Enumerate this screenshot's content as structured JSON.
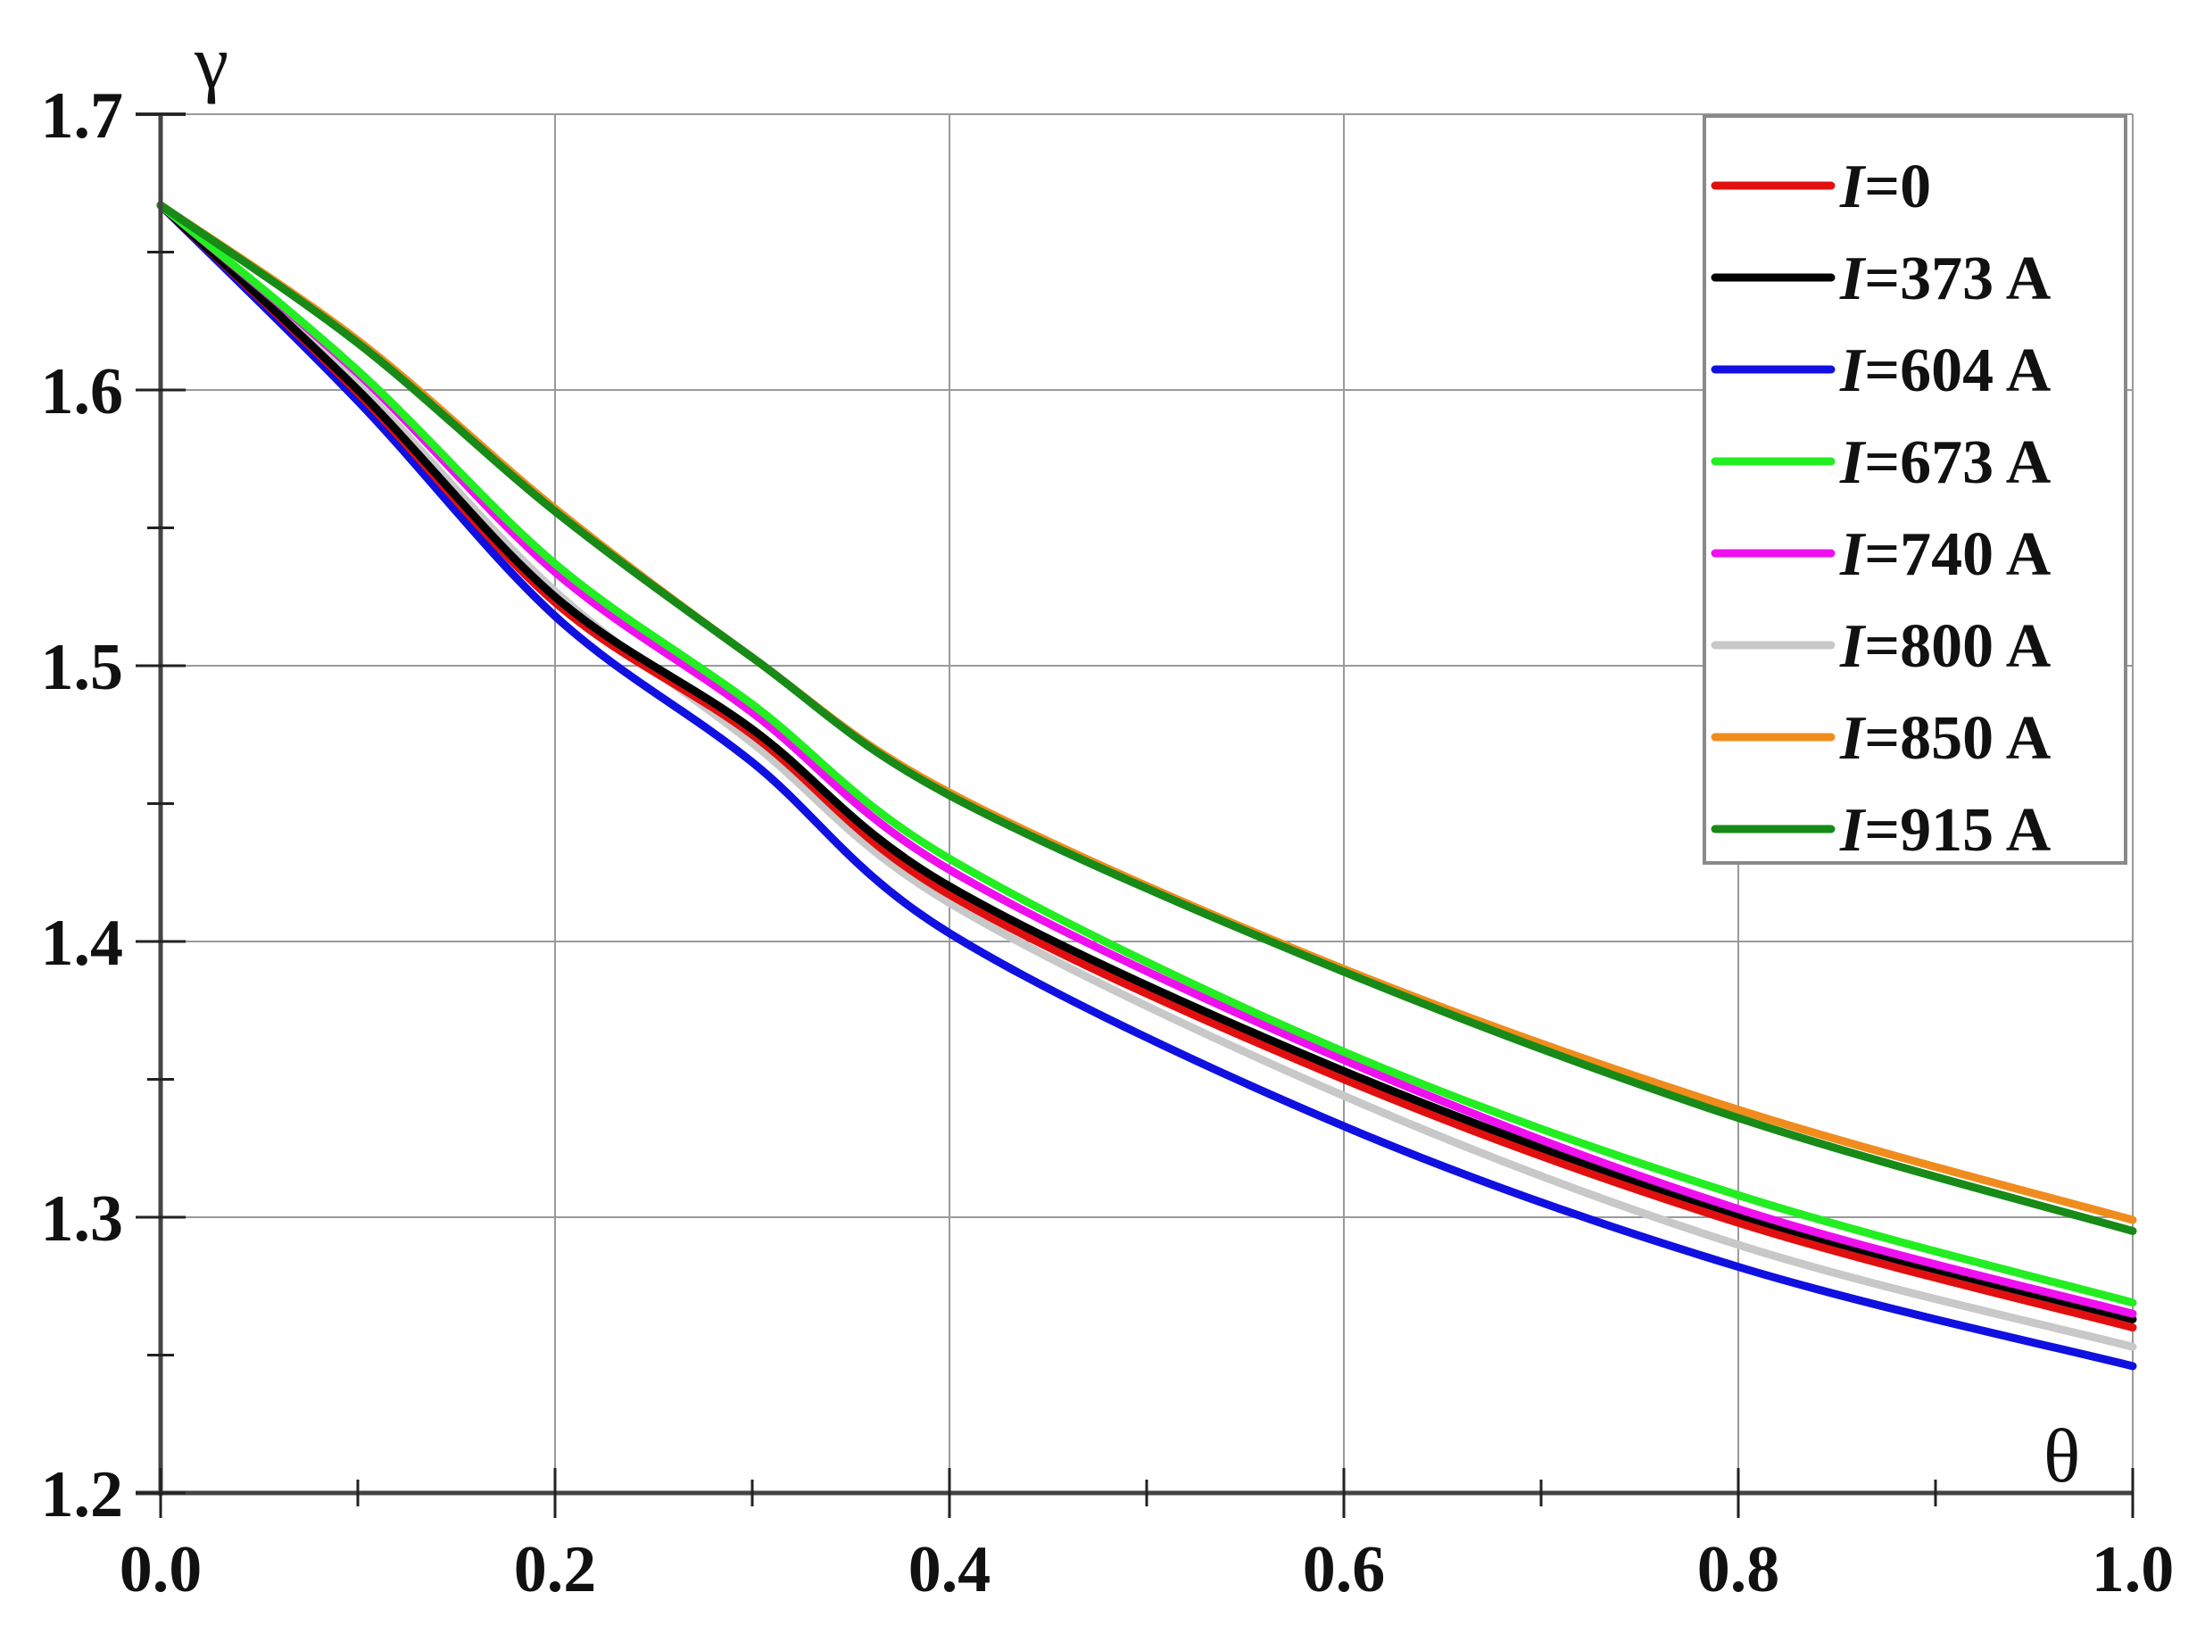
{
  "chart_data": {
    "type": "line",
    "title": "",
    "xlabel": "θ",
    "ylabel": "γ",
    "xlim": [
      0.0,
      1.0
    ],
    "ylim": [
      1.2,
      1.7
    ],
    "grid": true,
    "legend_position": "upper right",
    "x_ticks": [
      "0.0",
      "0.2",
      "0.4",
      "0.6",
      "0.8",
      "1.0"
    ],
    "y_ticks": [
      "1.2",
      "1.3",
      "1.4",
      "1.5",
      "1.6",
      "1.7"
    ],
    "x": [
      0.0,
      0.1,
      0.2,
      0.3,
      0.4,
      0.6,
      0.8,
      1.0
    ],
    "series": [
      {
        "name": "I=0",
        "var": "I",
        "value": "=0",
        "color": "#e01010",
        "values": [
          1.667,
          1.599,
          1.523,
          1.475,
          1.417,
          1.35,
          1.298,
          1.26
        ]
      },
      {
        "name": "I=373 A",
        "var": "I",
        "value": "=373 A",
        "color": "#000000",
        "values": [
          1.667,
          1.6,
          1.525,
          1.477,
          1.42,
          1.353,
          1.301,
          1.263
        ]
      },
      {
        "name": "I=604 A",
        "var": "I",
        "value": "=604 A",
        "color": "#1010e0",
        "values": [
          1.667,
          1.596,
          1.518,
          1.465,
          1.403,
          1.333,
          1.282,
          1.246
        ]
      },
      {
        "name": "I=673 A",
        "var": "I",
        "value": "=673 A",
        "color": "#22ee22",
        "values": [
          1.667,
          1.607,
          1.537,
          1.486,
          1.43,
          1.36,
          1.308,
          1.269
        ]
      },
      {
        "name": "I=740 A",
        "var": "I",
        "value": "=740 A",
        "color": "#ee10ee",
        "values": [
          1.667,
          1.606,
          1.534,
          1.483,
          1.426,
          1.357,
          1.303,
          1.265
        ]
      },
      {
        "name": "I=800 A",
        "var": "I",
        "value": "=800 A",
        "color": "#c8c8c8",
        "values": [
          1.667,
          1.602,
          1.527,
          1.472,
          1.414,
          1.344,
          1.29,
          1.253
        ]
      },
      {
        "name": "I=850 A",
        "var": "I",
        "value": "=850 A",
        "color": "#f08c1e",
        "values": [
          1.667,
          1.618,
          1.557,
          1.503,
          1.454,
          1.39,
          1.339,
          1.299
        ]
      },
      {
        "name": "I=915 A",
        "var": "I",
        "value": "=915 A",
        "color": "#178a17",
        "values": [
          1.667,
          1.617,
          1.556,
          1.503,
          1.453,
          1.389,
          1.336,
          1.295
        ]
      }
    ]
  }
}
